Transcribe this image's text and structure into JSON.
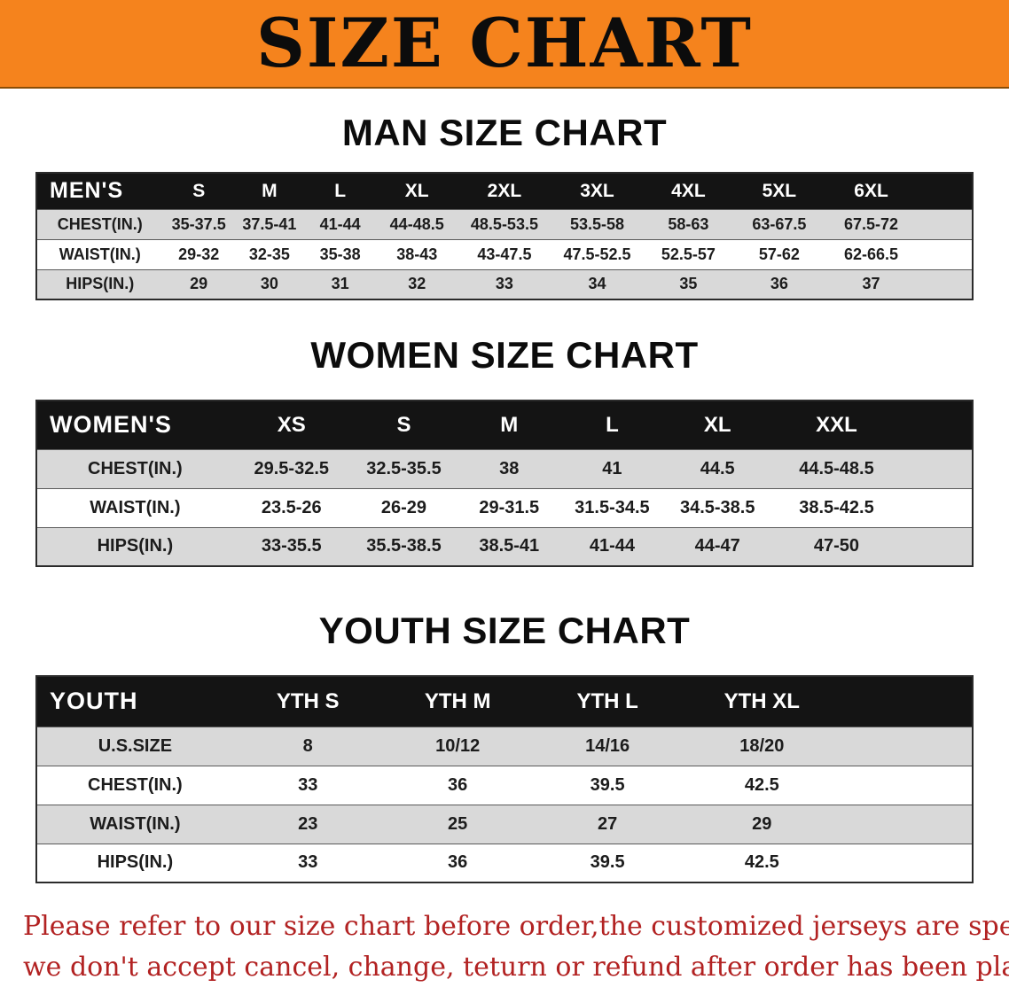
{
  "banner": {
    "title": "SIZE CHART"
  },
  "colors": {
    "banner_bg": "#F5831D",
    "header_bg": "#141414",
    "row_alt_bg": "#D9D9D9",
    "disclaimer_text": "#B22222"
  },
  "sections": [
    {
      "id": "men",
      "heading": "MAN SIZE CHART",
      "table": {
        "header": [
          "MEN'S",
          "S",
          "M",
          "L",
          "XL",
          "2XL",
          "3XL",
          "4XL",
          "5XL",
          "6XL"
        ],
        "rows": [
          [
            "CHEST(IN.)",
            "35-37.5",
            "37.5-41",
            "41-44",
            "44-48.5",
            "48.5-53.5",
            "53.5-58",
            "58-63",
            "63-67.5",
            "67.5-72"
          ],
          [
            "WAIST(IN.)",
            "29-32",
            "32-35",
            "35-38",
            "38-43",
            "43-47.5",
            "47.5-52.5",
            "52.5-57",
            "57-62",
            "62-66.5"
          ],
          [
            "HIPS(IN.)",
            "29",
            "30",
            "31",
            "32",
            "33",
            "34",
            "35",
            "36",
            "37"
          ]
        ]
      }
    },
    {
      "id": "women",
      "heading": "WOMEN SIZE CHART",
      "table": {
        "header": [
          "WOMEN'S",
          "XS",
          "S",
          "M",
          "L",
          "XL",
          "XXL"
        ],
        "rows": [
          [
            "CHEST(IN.)",
            "29.5-32.5",
            "32.5-35.5",
            "38",
            "41",
            "44.5",
            "44.5-48.5"
          ],
          [
            "WAIST(IN.)",
            "23.5-26",
            "26-29",
            "29-31.5",
            "31.5-34.5",
            "34.5-38.5",
            "38.5-42.5"
          ],
          [
            "HIPS(IN.)",
            "33-35.5",
            "35.5-38.5",
            "38.5-41",
            "41-44",
            "44-47",
            "47-50"
          ]
        ]
      }
    },
    {
      "id": "youth",
      "heading": "YOUTH SIZE CHART",
      "table": {
        "header": [
          "YOUTH",
          "YTH S",
          "YTH M",
          "YTH L",
          "YTH XL"
        ],
        "rows": [
          [
            "U.S.SIZE",
            "8",
            "10/12",
            "14/16",
            "18/20"
          ],
          [
            "CHEST(IN.)",
            "33",
            "36",
            "39.5",
            "42.5"
          ],
          [
            "WAIST(IN.)",
            "23",
            "25",
            "27",
            "29"
          ],
          [
            "HIPS(IN.)",
            "33",
            "36",
            "39.5",
            "42.5"
          ]
        ]
      }
    }
  ],
  "disclaimer": {
    "line1": "Please refer to our size chart before order,the customized jerseys are special products,",
    "line2": "we don't accept cancel, change, teturn or refund after order has been placed!"
  }
}
